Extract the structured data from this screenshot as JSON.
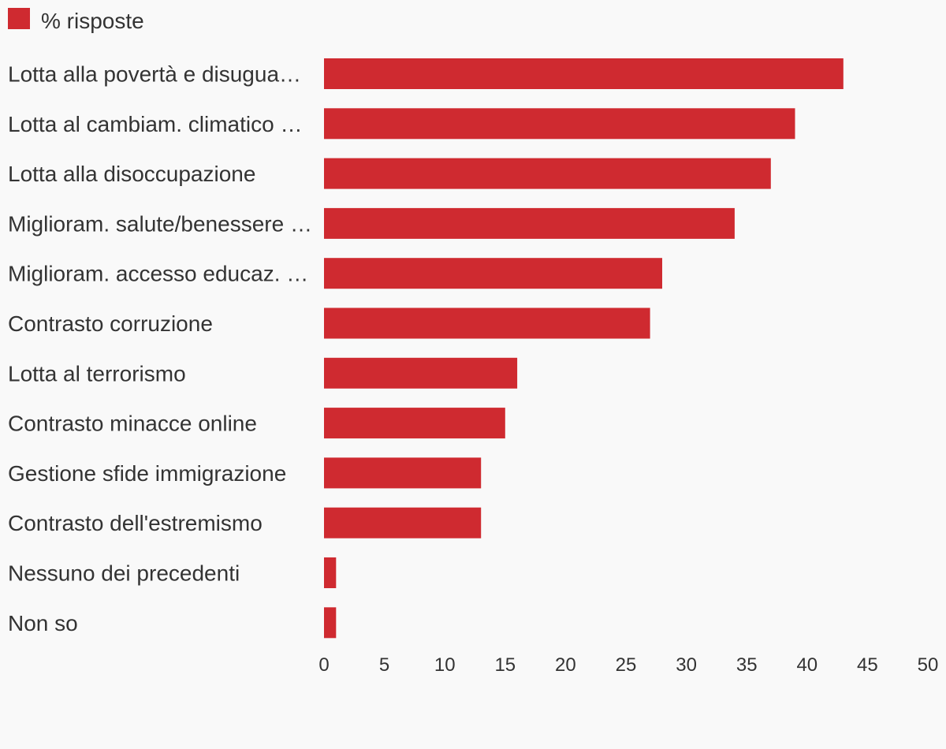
{
  "colors": {
    "background": "#f9f9f9",
    "bar": "#cf2a30",
    "text": "#333333"
  },
  "chart_data": {
    "type": "bar",
    "orientation": "horizontal",
    "legend": {
      "placement": "top-left",
      "entries": [
        "% risposte"
      ]
    },
    "categories": [
      "Lotta alla povertà e disugua…",
      "Lotta al cambiam. climatico …",
      "Lotta alla disoccupazione",
      "Miglioram. salute/benessere …",
      "Miglioram. accesso educaz. …",
      "Contrasto corruzione",
      "Lotta al terrorismo",
      "Contrasto minacce online",
      "Gestione sfide immigrazione",
      "Contrasto dell'estremismo",
      "Nessuno dei precedenti",
      "Non so"
    ],
    "series": [
      {
        "name": "% risposte",
        "values": [
          43,
          39,
          37,
          34,
          28,
          27,
          16,
          15,
          13,
          13,
          1,
          1
        ]
      }
    ],
    "xlim": [
      0,
      50
    ],
    "xticks": [
      0,
      5,
      10,
      15,
      20,
      25,
      30,
      35,
      40,
      45,
      50
    ],
    "grid": false,
    "title": "",
    "xlabel": "",
    "ylabel": ""
  }
}
